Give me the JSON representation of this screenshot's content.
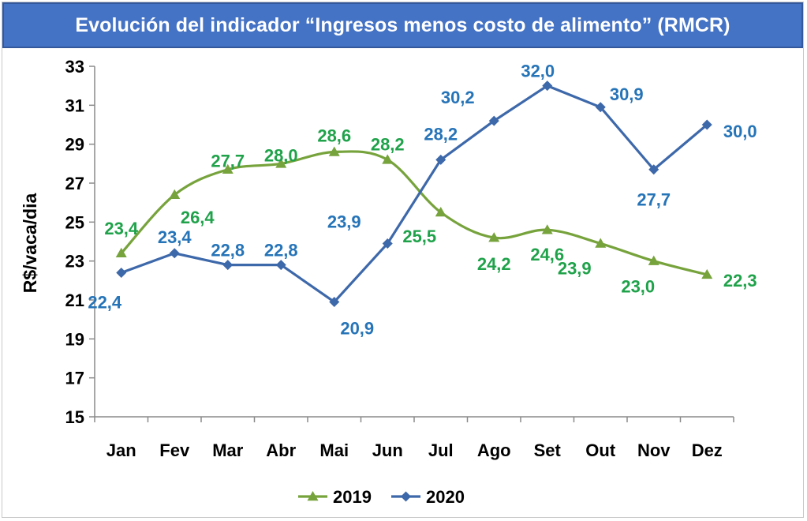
{
  "chart_data": {
    "type": "line",
    "title": "Evolución del indicador “Ingresos menos costo de alimento” (RMCR)",
    "ylabel": "R$/vaca/dia",
    "xlabel": "",
    "categories": [
      "Jan",
      "Fev",
      "Mar",
      "Abr",
      "Mai",
      "Jun",
      "Jul",
      "Ago",
      "Set",
      "Out",
      "Nov",
      "Dez"
    ],
    "ylim": [
      15,
      33
    ],
    "yticks": [
      "15",
      "17",
      "19",
      "21",
      "23",
      "25",
      "27",
      "29",
      "31",
      "33"
    ],
    "grid": false,
    "legend_position": "bottom-center",
    "series": [
      {
        "name": "2019",
        "color": "#77a33c",
        "label_color": "#1fa24a",
        "marker": "triangle",
        "values": [
          23.4,
          26.4,
          27.7,
          28.0,
          28.6,
          28.2,
          25.5,
          24.2,
          24.6,
          23.9,
          23.0,
          22.3
        ],
        "labels": [
          "23,4",
          "26,4",
          "27,7",
          "28,0",
          "28,6",
          "28,2",
          "25,5",
          "24,2",
          "24,6",
          "23,9",
          "23,0",
          "22,3"
        ]
      },
      {
        "name": "2020",
        "color": "#3d68aa",
        "label_color": "#2674b8",
        "marker": "diamond",
        "values": [
          22.4,
          23.4,
          22.8,
          22.8,
          20.9,
          23.9,
          28.2,
          30.2,
          32.0,
          30.9,
          27.7,
          30.0
        ],
        "labels": [
          "22,4",
          "23,4",
          "22,8",
          "22,8",
          "20,9",
          "23,9",
          "28,2",
          "30,2",
          "32,0",
          "30,9",
          "27,7",
          "30,0"
        ]
      }
    ]
  }
}
